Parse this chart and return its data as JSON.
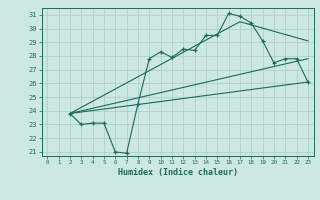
{
  "xlabel": "Humidex (Indice chaleur)",
  "bg_color": "#cce8e0",
  "grid_color": "#aacccc",
  "line_color": "#1a6b5a",
  "xlim": [
    -0.5,
    23.5
  ],
  "ylim": [
    20.7,
    31.5
  ],
  "yticks": [
    21,
    22,
    23,
    24,
    25,
    26,
    27,
    28,
    29,
    30,
    31
  ],
  "xticks": [
    0,
    1,
    2,
    3,
    4,
    5,
    6,
    7,
    8,
    9,
    10,
    11,
    12,
    13,
    14,
    15,
    16,
    17,
    18,
    19,
    20,
    21,
    22,
    23
  ],
  "line1_x": [
    2,
    3,
    4,
    5,
    6,
    7,
    8,
    9,
    10,
    11,
    12,
    13,
    14,
    15,
    16,
    17,
    18,
    19,
    20,
    21,
    22,
    23
  ],
  "line1_y": [
    23.8,
    23.0,
    23.1,
    23.1,
    21.0,
    20.9,
    24.5,
    27.8,
    28.3,
    27.9,
    28.5,
    28.4,
    29.5,
    29.5,
    31.1,
    30.9,
    30.4,
    29.1,
    27.5,
    27.8,
    27.8,
    26.1
  ],
  "line2_x": [
    2,
    23
  ],
  "line2_y": [
    23.8,
    26.1
  ],
  "line3_x": [
    2,
    17,
    23
  ],
  "line3_y": [
    23.8,
    30.5,
    29.1
  ],
  "line4_x": [
    2,
    23
  ],
  "line4_y": [
    23.8,
    27.8
  ]
}
